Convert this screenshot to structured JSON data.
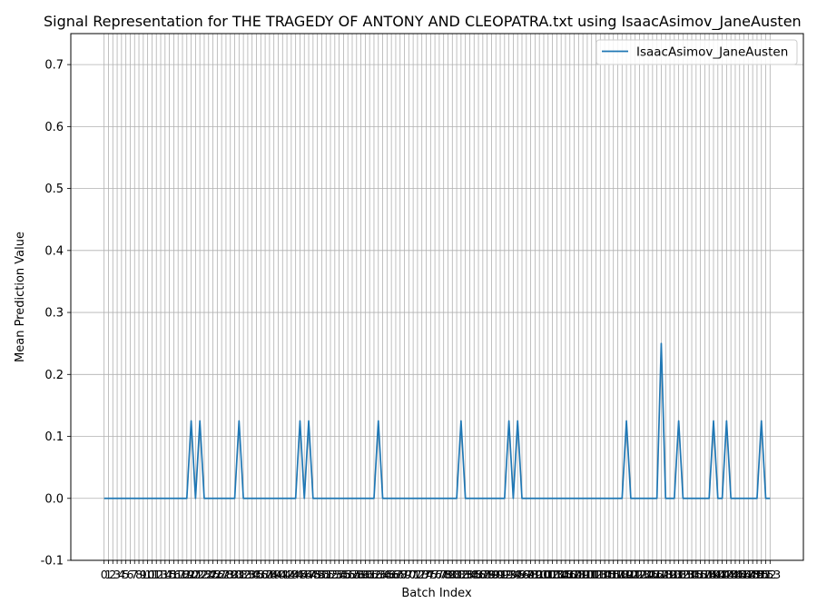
{
  "chart_data": {
    "type": "line",
    "title": "Signal Representation for THE TRAGEDY OF ANTONY AND CLEOPATRA.txt using IsaacAsimov_JaneAusten",
    "xlabel": "Batch Index",
    "ylabel": "Mean Prediction Value",
    "ylim": [
      -0.1,
      0.75
    ],
    "xlim": [
      -7.65,
      160.65
    ],
    "yticks": [
      -0.1,
      0.0,
      0.1,
      0.2,
      0.3,
      0.4,
      0.5,
      0.6,
      0.7
    ],
    "grid": true,
    "legend": "top-right",
    "colors": {
      "series": "#1f77b4",
      "grid": "#b0b0b0"
    },
    "series": [
      {
        "name": "IsaacAsimov_JaneAusten",
        "x_start": 0,
        "x_end": 153,
        "nonzero": [
          {
            "x": 20,
            "y": 0.125
          },
          {
            "x": 22,
            "y": 0.125
          },
          {
            "x": 31,
            "y": 0.125
          },
          {
            "x": 45,
            "y": 0.125
          },
          {
            "x": 47,
            "y": 0.125
          },
          {
            "x": 63,
            "y": 0.125
          },
          {
            "x": 82,
            "y": 0.125
          },
          {
            "x": 93,
            "y": 0.125
          },
          {
            "x": 95,
            "y": 0.125
          },
          {
            "x": 120,
            "y": 0.125
          },
          {
            "x": 128,
            "y": 0.25
          },
          {
            "x": 132,
            "y": 0.125
          },
          {
            "x": 140,
            "y": 0.125
          },
          {
            "x": 143,
            "y": 0.125
          },
          {
            "x": 151,
            "y": 0.125
          }
        ]
      }
    ]
  }
}
